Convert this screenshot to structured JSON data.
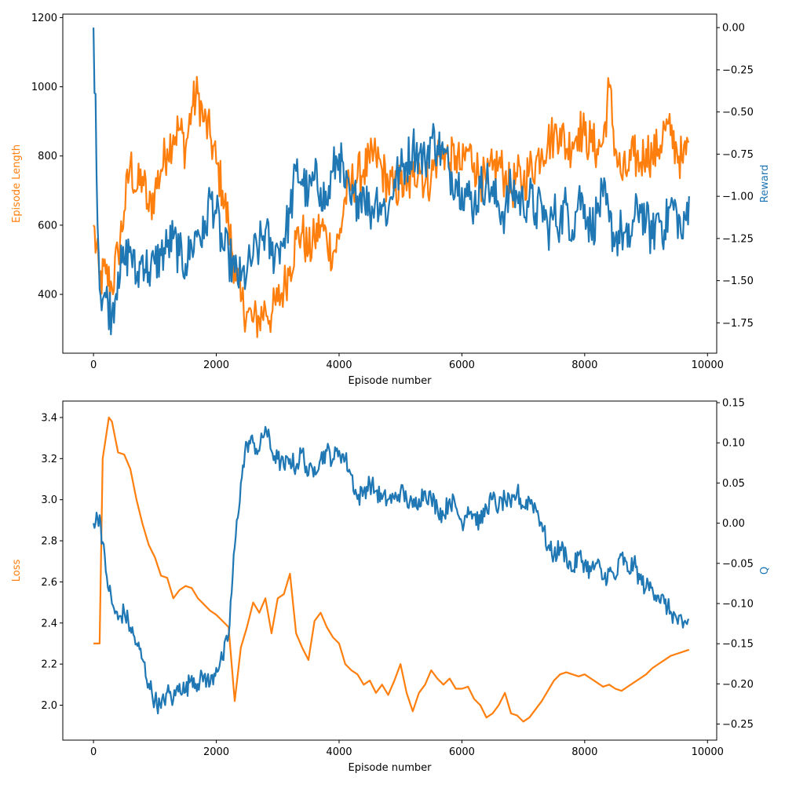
{
  "colors": {
    "length": "#ff7f0e",
    "reward": "#1f77b4",
    "loss": "#ff7f0e",
    "q": "#1f77b4",
    "axis": "#000000"
  },
  "chart_data": [
    {
      "type": "line",
      "xlabel": "Episode number",
      "ylabel_left": "Episode Length",
      "ylabel_right": "Reward",
      "xlim": [
        -500,
        10150
      ],
      "ylim_left": [
        230,
        1210
      ],
      "ylim_right": [
        -1.93,
        0.08
      ],
      "x_ticks": [
        0,
        2000,
        4000,
        6000,
        8000,
        10000
      ],
      "x_tick_labels": [
        "0",
        "2000",
        "4000",
        "6000",
        "8000",
        "10000"
      ],
      "y_left_ticks": [
        400,
        600,
        800,
        1000,
        1200
      ],
      "y_left_tick_labels": [
        "400",
        "600",
        "800",
        "1000",
        "1200"
      ],
      "y_right_ticks": [
        -1.75,
        -1.5,
        -1.25,
        -1.0,
        -0.75,
        -0.5,
        -0.25,
        0.0
      ],
      "y_right_tick_labels": [
        "−1.75",
        "−1.50",
        "−1.25",
        "−1.00",
        "−0.75",
        "−0.50",
        "−0.25",
        "0.00"
      ],
      "series": [
        {
          "name": "Episode Length",
          "axis": "left",
          "x": [
            0,
            100,
            200,
            300,
            400,
            500,
            600,
            700,
            800,
            900,
            1000,
            1100,
            1200,
            1300,
            1400,
            1500,
            1600,
            1700,
            1800,
            1900,
            2000,
            2100,
            2200,
            2300,
            2400,
            2500,
            2600,
            2700,
            2800,
            2900,
            3000,
            3100,
            3200,
            3300,
            3400,
            3500,
            3600,
            3700,
            3800,
            3900,
            4000,
            4100,
            4200,
            4300,
            4400,
            4500,
            4600,
            4700,
            4800,
            4900,
            5000,
            5100,
            5200,
            5300,
            5400,
            5500,
            5600,
            5700,
            5800,
            5900,
            6000,
            6100,
            6200,
            6300,
            6400,
            6500,
            6600,
            6700,
            6800,
            6900,
            7000,
            7100,
            7200,
            7300,
            7400,
            7500,
            7600,
            7700,
            7800,
            7900,
            8000,
            8100,
            8200,
            8300,
            8400,
            8500,
            8600,
            8700,
            8800,
            8900,
            9000,
            9100,
            9200,
            9300,
            9400,
            9500,
            9600,
            9700
          ],
          "values": [
            600,
            440,
            460,
            420,
            520,
            640,
            780,
            700,
            740,
            640,
            700,
            760,
            820,
            860,
            880,
            820,
            940,
            980,
            900,
            860,
            780,
            700,
            600,
            480,
            380,
            350,
            320,
            330,
            360,
            340,
            380,
            420,
            480,
            560,
            580,
            520,
            560,
            600,
            560,
            520,
            560,
            680,
            720,
            740,
            760,
            780,
            800,
            760,
            720,
            700,
            720,
            700,
            740,
            780,
            720,
            740,
            800,
            820,
            780,
            800,
            760,
            820,
            780,
            740,
            720,
            760,
            780,
            740,
            700,
            740,
            720,
            760,
            780,
            820,
            840,
            860,
            880,
            820,
            840,
            880,
            860,
            840,
            820,
            840,
            1000,
            820,
            740,
            760,
            800,
            780,
            820,
            800,
            820,
            880,
            860,
            820,
            780,
            840
          ]
        },
        {
          "name": "Reward",
          "axis": "right",
          "x": [
            0,
            100,
            200,
            300,
            400,
            500,
            600,
            700,
            800,
            900,
            1000,
            1100,
            1200,
            1300,
            1400,
            1500,
            1600,
            1700,
            1800,
            1900,
            2000,
            2100,
            2200,
            2300,
            2400,
            2500,
            2600,
            2700,
            2800,
            2900,
            3000,
            3100,
            3200,
            3300,
            3400,
            3500,
            3600,
            3700,
            3800,
            3900,
            4000,
            4100,
            4200,
            4300,
            4400,
            4500,
            4600,
            4700,
            4800,
            4900,
            5000,
            5100,
            5200,
            5300,
            5400,
            5500,
            5600,
            5700,
            5800,
            5900,
            6000,
            6100,
            6200,
            6300,
            6400,
            6500,
            6600,
            6700,
            6800,
            6900,
            7000,
            7100,
            7200,
            7300,
            7400,
            7500,
            7600,
            7700,
            7800,
            7900,
            8000,
            8100,
            8200,
            8300,
            8400,
            8500,
            8600,
            8700,
            8800,
            8900,
            9000,
            9100,
            9200,
            9300,
            9400,
            9500,
            9600,
            9700
          ],
          "values": [
            0.0,
            -1.55,
            -1.6,
            -1.7,
            -1.45,
            -1.4,
            -1.3,
            -1.5,
            -1.35,
            -1.45,
            -1.4,
            -1.35,
            -1.3,
            -1.25,
            -1.35,
            -1.4,
            -1.3,
            -1.2,
            -1.25,
            -1.0,
            -1.1,
            -1.3,
            -1.35,
            -1.45,
            -1.5,
            -1.45,
            -1.35,
            -1.3,
            -1.2,
            -1.35,
            -1.3,
            -1.25,
            -1.1,
            -0.85,
            -0.9,
            -1.0,
            -0.9,
            -0.95,
            -1.05,
            -0.85,
            -0.75,
            -0.95,
            -1.05,
            -1.0,
            -0.95,
            -1.1,
            -1.0,
            -1.05,
            -1.1,
            -0.9,
            -0.85,
            -0.8,
            -0.7,
            -0.75,
            -0.8,
            -0.65,
            -0.7,
            -0.75,
            -0.85,
            -0.9,
            -0.95,
            -1.0,
            -1.05,
            -0.95,
            -0.9,
            -1.0,
            -1.05,
            -1.1,
            -0.95,
            -1.0,
            -1.05,
            -1.0,
            -1.1,
            -1.05,
            -1.2,
            -1.1,
            -1.15,
            -1.05,
            -1.2,
            -1.0,
            -1.05,
            -1.2,
            -1.1,
            -1.0,
            -1.15,
            -1.25,
            -1.2,
            -1.3,
            -1.15,
            -1.05,
            -1.15,
            -1.25,
            -1.1,
            -1.2,
            -1.05,
            -1.1,
            -1.25,
            -1.0
          ]
        }
      ]
    },
    {
      "type": "line",
      "xlabel": "Episode number",
      "ylabel_left": "Loss",
      "ylabel_right": "Q",
      "xlim": [
        -500,
        10150
      ],
      "ylim_left": [
        1.83,
        3.48
      ],
      "ylim_right": [
        -0.27,
        0.152
      ],
      "x_ticks": [
        0,
        2000,
        4000,
        6000,
        8000,
        10000
      ],
      "x_tick_labels": [
        "0",
        "2000",
        "4000",
        "6000",
        "8000",
        "10000"
      ],
      "y_left_ticks": [
        2.0,
        2.2,
        2.4,
        2.6,
        2.8,
        3.0,
        3.2,
        3.4
      ],
      "y_left_tick_labels": [
        "2.0",
        "2.2",
        "2.4",
        "2.6",
        "2.8",
        "3.0",
        "3.2",
        "3.4"
      ],
      "y_right_ticks": [
        -0.25,
        -0.2,
        -0.15,
        -0.1,
        -0.05,
        0.0,
        0.05,
        0.1,
        0.15
      ],
      "y_right_tick_labels": [
        "−0.25",
        "−0.20",
        "−0.15",
        "−0.10",
        "−0.05",
        "0.00",
        "0.05",
        "0.10",
        "0.15"
      ],
      "series": [
        {
          "name": "Loss",
          "axis": "left",
          "x": [
            0,
            50,
            100,
            150,
            250,
            300,
            400,
            500,
            600,
            700,
            800,
            900,
            1000,
            1100,
            1200,
            1300,
            1400,
            1500,
            1600,
            1700,
            1800,
            1900,
            2000,
            2100,
            2200,
            2300,
            2400,
            2500,
            2600,
            2700,
            2800,
            2900,
            3000,
            3100,
            3200,
            3300,
            3400,
            3500,
            3600,
            3700,
            3800,
            3900,
            4000,
            4100,
            4200,
            4300,
            4400,
            4500,
            4600,
            4700,
            4800,
            4900,
            5000,
            5100,
            5200,
            5300,
            5400,
            5500,
            5600,
            5700,
            5800,
            5900,
            6000,
            6100,
            6200,
            6300,
            6400,
            6500,
            6600,
            6700,
            6800,
            6900,
            7000,
            7100,
            7200,
            7300,
            7400,
            7500,
            7600,
            7700,
            7800,
            7900,
            8000,
            8100,
            8200,
            8300,
            8400,
            8500,
            8600,
            8700,
            8800,
            8900,
            9000,
            9100,
            9200,
            9300,
            9400,
            9500,
            9600,
            9700
          ],
          "values": [
            2.3,
            2.3,
            2.3,
            3.2,
            3.4,
            3.38,
            3.23,
            3.22,
            3.15,
            3.0,
            2.88,
            2.78,
            2.72,
            2.63,
            2.62,
            2.52,
            2.56,
            2.58,
            2.57,
            2.52,
            2.49,
            2.46,
            2.44,
            2.41,
            2.38,
            2.02,
            2.28,
            2.38,
            2.5,
            2.45,
            2.52,
            2.35,
            2.52,
            2.54,
            2.64,
            2.35,
            2.28,
            2.22,
            2.41,
            2.45,
            2.38,
            2.33,
            2.3,
            2.2,
            2.17,
            2.15,
            2.1,
            2.12,
            2.06,
            2.1,
            2.05,
            2.12,
            2.2,
            2.06,
            1.97,
            2.06,
            2.1,
            2.17,
            2.13,
            2.1,
            2.13,
            2.08,
            2.08,
            2.09,
            2.03,
            2.0,
            1.94,
            1.96,
            2.0,
            2.06,
            1.96,
            1.95,
            1.92,
            1.94,
            1.98,
            2.02,
            2.07,
            2.12,
            2.15,
            2.16,
            2.15,
            2.14,
            2.15,
            2.13,
            2.11,
            2.09,
            2.1,
            2.08,
            2.07,
            2.09,
            2.11,
            2.13,
            2.15,
            2.18,
            2.2,
            2.22,
            2.24,
            2.25,
            2.26,
            2.27
          ]
        },
        {
          "name": "Q",
          "axis": "right",
          "x": [
            0,
            100,
            200,
            300,
            400,
            500,
            600,
            700,
            800,
            900,
            1000,
            1100,
            1200,
            1300,
            1400,
            1500,
            1600,
            1700,
            1800,
            1900,
            2000,
            2100,
            2200,
            2300,
            2400,
            2500,
            2600,
            2700,
            2800,
            2900,
            3000,
            3100,
            3200,
            3300,
            3400,
            3500,
            3600,
            3700,
            3800,
            3900,
            4000,
            4100,
            4200,
            4300,
            4400,
            4500,
            4600,
            4700,
            4800,
            4900,
            5000,
            5100,
            5200,
            5300,
            5400,
            5500,
            5600,
            5700,
            5800,
            5900,
            6000,
            6100,
            6200,
            6300,
            6400,
            6500,
            6600,
            6700,
            6800,
            6900,
            7000,
            7100,
            7200,
            7300,
            7400,
            7500,
            7600,
            7700,
            7800,
            7900,
            8000,
            8100,
            8200,
            8300,
            8400,
            8500,
            8600,
            8700,
            8800,
            8900,
            9000,
            9100,
            9200,
            9300,
            9400,
            9500,
            9600,
            9700
          ],
          "values": [
            0.0,
            0.01,
            -0.06,
            -0.1,
            -0.12,
            -0.11,
            -0.13,
            -0.15,
            -0.17,
            -0.2,
            -0.22,
            -0.23,
            -0.21,
            -0.22,
            -0.2,
            -0.21,
            -0.19,
            -0.2,
            -0.19,
            -0.2,
            -0.18,
            -0.17,
            -0.14,
            -0.03,
            0.05,
            0.1,
            0.1,
            0.09,
            0.12,
            0.09,
            0.08,
            0.07,
            0.08,
            0.07,
            0.09,
            0.06,
            0.07,
            0.08,
            0.09,
            0.08,
            0.09,
            0.08,
            0.06,
            0.03,
            0.04,
            0.05,
            0.04,
            0.03,
            0.03,
            0.03,
            0.04,
            0.03,
            0.02,
            0.03,
            0.04,
            0.03,
            0.02,
            0.01,
            0.03,
            0.02,
            0.0,
            0.02,
            0.01,
            0.0,
            0.02,
            0.03,
            0.02,
            0.03,
            0.02,
            0.04,
            0.02,
            0.03,
            0.02,
            0.0,
            -0.03,
            -0.04,
            -0.03,
            -0.04,
            -0.06,
            -0.04,
            -0.05,
            -0.06,
            -0.05,
            -0.07,
            -0.06,
            -0.07,
            -0.04,
            -0.06,
            -0.05,
            -0.07,
            -0.08,
            -0.08,
            -0.09,
            -0.1,
            -0.11,
            -0.12,
            -0.13,
            -0.12
          ]
        }
      ]
    }
  ]
}
